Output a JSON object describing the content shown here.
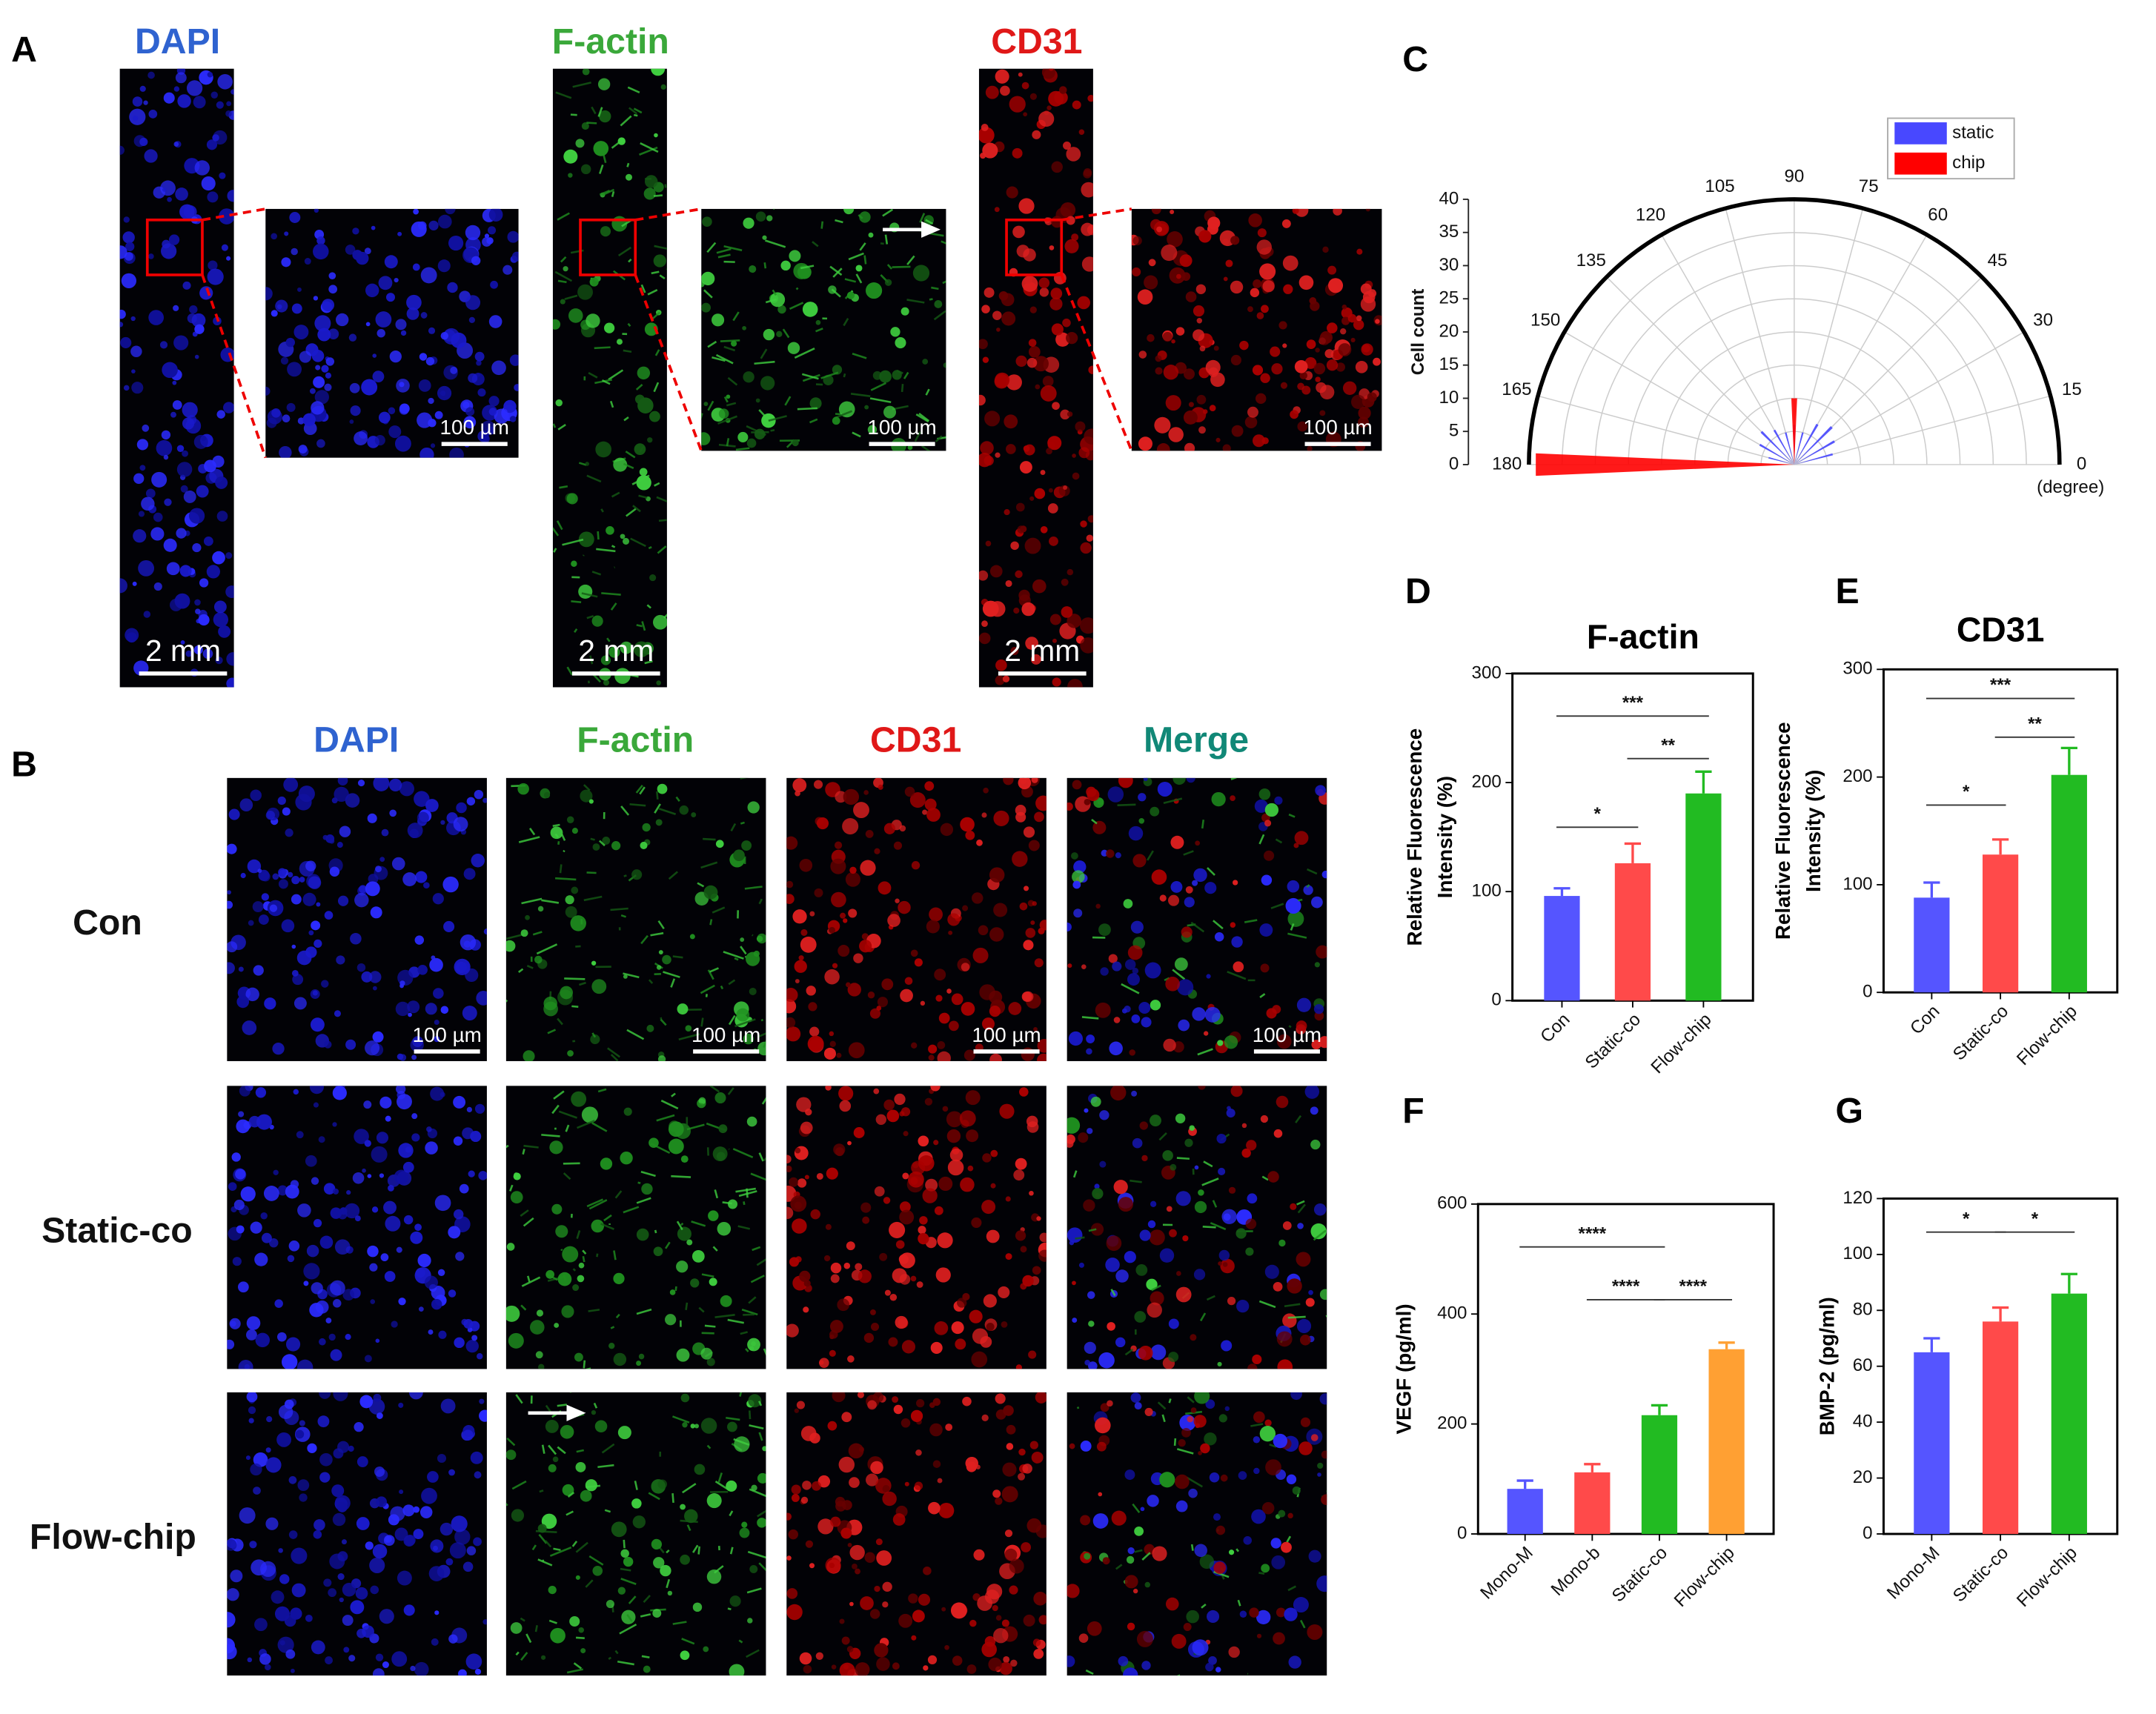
{
  "panel_a": {
    "label": "A",
    "channels": [
      {
        "name": "DAPI",
        "color": "#2f63d0",
        "scale_bar": "2 mm",
        "inset_scale_bar": "100 µm"
      },
      {
        "name": "F-actin",
        "color": "#3aa83a",
        "scale_bar": "2 mm",
        "inset_scale_bar": "100 µm"
      },
      {
        "name": "CD31",
        "color": "#e01818",
        "scale_bar": "2 mm",
        "inset_scale_bar": "100 µm"
      }
    ]
  },
  "panel_b": {
    "label": "B",
    "columns": [
      {
        "name": "DAPI",
        "color": "#2f63d0"
      },
      {
        "name": "F-actin",
        "color": "#3aa83a"
      },
      {
        "name": "CD31",
        "color": "#e01818"
      },
      {
        "name": "Merge",
        "color": "#118877"
      }
    ],
    "rows": [
      "Con",
      "Static-co",
      "Flow-chip"
    ],
    "scale_bars": [
      "100 µm",
      "100 µm",
      "100 µm",
      "100 µm"
    ]
  },
  "chart_data": [
    {
      "type": "polar",
      "panel_label": "C",
      "r_label": "Cell count",
      "theta_label": "(degree)",
      "rlim": [
        0,
        40
      ],
      "rticks": [
        0,
        5,
        10,
        15,
        20,
        25,
        30,
        35,
        40
      ],
      "thetalim": [
        0,
        180
      ],
      "thetaticks": [
        0,
        15,
        30,
        45,
        60,
        75,
        90,
        105,
        120,
        135,
        150,
        165,
        180
      ],
      "legend": "upper right",
      "series": [
        {
          "name": "static",
          "color": "#4848ff",
          "theta": [
            15,
            30,
            45,
            60,
            75,
            90,
            105,
            120,
            135,
            150,
            165
          ],
          "values": [
            6,
            7,
            8,
            7,
            5,
            6,
            5,
            6,
            7,
            6,
            4
          ]
        },
        {
          "name": "chip",
          "color": "#ff0000",
          "theta": [
            90,
            180
          ],
          "values": [
            10,
            39
          ]
        }
      ]
    },
    {
      "type": "bar",
      "panel_label": "D",
      "title": "F-actin",
      "ylabel": [
        "Relative Fluorescence",
        "Intensity (%)"
      ],
      "categories": [
        "Con",
        "Static-co",
        "Flow-chip"
      ],
      "values": [
        96,
        126,
        190
      ],
      "errors": [
        7,
        18,
        20
      ],
      "colors": [
        "#5555ff",
        "#ff4a4a",
        "#22bb22"
      ],
      "ylim": [
        0,
        300
      ],
      "yticks": [
        0,
        100,
        200,
        300
      ],
      "annotations": [
        "*",
        "**",
        "***"
      ]
    },
    {
      "type": "bar",
      "panel_label": "E",
      "title": "CD31",
      "ylabel": [
        "Relative Fluorescence",
        "Intensity (%)"
      ],
      "categories": [
        "Con",
        "Static-co",
        "Flow-chip"
      ],
      "values": [
        88,
        128,
        202
      ],
      "errors": [
        14,
        14,
        25
      ],
      "colors": [
        "#5555ff",
        "#ff4a4a",
        "#22bb22"
      ],
      "ylim": [
        0,
        300
      ],
      "yticks": [
        0,
        100,
        200,
        300
      ],
      "annotations": [
        "*",
        "**",
        "***"
      ]
    },
    {
      "type": "bar",
      "panel_label": "F",
      "ylabel": [
        "VEGF (pg/ml)"
      ],
      "categories": [
        "Mono-M",
        "Mono-b",
        "Static-co",
        "Flow-chip"
      ],
      "values": [
        82,
        112,
        216,
        336
      ],
      "errors": [
        15,
        15,
        18,
        12
      ],
      "colors": [
        "#5555ff",
        "#ff4a4a",
        "#22bb22",
        "#ffa033"
      ],
      "ylim": [
        0,
        600
      ],
      "yticks": [
        0,
        200,
        400,
        600
      ],
      "annotations": [
        "****",
        "****",
        "****"
      ]
    },
    {
      "type": "bar",
      "panel_label": "G",
      "ylabel": [
        "BMP-2 (pg/ml)"
      ],
      "categories": [
        "Mono-M",
        "Static-co",
        "Flow-chip"
      ],
      "values": [
        65,
        76,
        86
      ],
      "errors": [
        5,
        5,
        7
      ],
      "colors": [
        "#5555ff",
        "#ff4a4a",
        "#22bb22"
      ],
      "ylim": [
        0,
        120
      ],
      "yticks": [
        0,
        20,
        40,
        60,
        80,
        100,
        120
      ],
      "annotations": [
        "*",
        "*"
      ]
    }
  ]
}
